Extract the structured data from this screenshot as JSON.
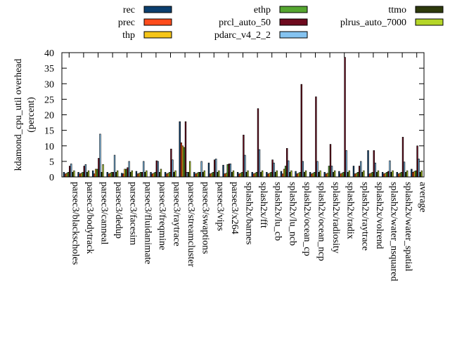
{
  "chart_data": {
    "type": "bar",
    "ylabel": "kdamond_cpu_util overhead (percent)",
    "ylabel_lines": [
      "kdamond_cpu_util overhead",
      "(percent)"
    ],
    "ylim": [
      0,
      40
    ],
    "yticks": [
      0,
      5,
      10,
      15,
      20,
      25,
      30,
      35,
      40
    ],
    "grid": false,
    "legend_position": "top",
    "categories": [
      "parsec3/blackscholes",
      "parsec3/bodytrack",
      "parsec3/canneal",
      "parsec3/dedup",
      "parsec3/facesim",
      "parsec3/fluidanimate",
      "parsec3/freqmine",
      "parsec3/raytrace",
      "parsec3/streamcluster",
      "parsec3/swaptions",
      "parsec3/vips",
      "parsec3/x264",
      "splash2x/barnes",
      "splash2x/fft",
      "splash2x/lu_cb",
      "splash2x/lu_ncb",
      "splash2x/ocean_cp",
      "splash2x/ocean_ncp",
      "splash2x/radiosity",
      "splash2x/radix",
      "splash2x/raytrace",
      "splash2x/volrend",
      "splash2x/water_nsquared",
      "splash2x/water_spatial",
      "average"
    ],
    "series": [
      {
        "name": "rec",
        "color": "#0b3f6f",
        "values": [
          1.5,
          1.5,
          2.0,
          1.5,
          1.2,
          1.8,
          1.5,
          1.5,
          17.8,
          1.5,
          4.5,
          3.8,
          1.5,
          1.5,
          1.5,
          1.8,
          1.8,
          1.5,
          1.5,
          1.8,
          3.5,
          8.5,
          1.5,
          1.5,
          2.5
        ]
      },
      {
        "name": "prec",
        "color": "#ff4c1c",
        "values": [
          1.0,
          1.0,
          1.0,
          1.0,
          1.0,
          1.0,
          1.0,
          1.0,
          11.0,
          1.0,
          1.0,
          1.0,
          1.0,
          1.0,
          1.0,
          1.0,
          1.0,
          1.0,
          1.0,
          1.0,
          1.0,
          1.0,
          1.0,
          1.0,
          1.5
        ]
      },
      {
        "name": "thp",
        "color": "#f5c518",
        "values": [
          1.2,
          1.2,
          2.5,
          1.2,
          2.5,
          1.2,
          1.2,
          1.2,
          10.0,
          1.2,
          1.2,
          1.2,
          1.2,
          1.2,
          1.2,
          2.5,
          1.2,
          1.2,
          1.2,
          1.2,
          1.2,
          1.2,
          1.2,
          1.2,
          1.8
        ]
      },
      {
        "name": "ethp",
        "color": "#55a630",
        "values": [
          1.5,
          1.5,
          2.5,
          1.5,
          2.5,
          1.5,
          1.5,
          1.5,
          9.5,
          1.5,
          1.5,
          4.0,
          1.5,
          1.5,
          1.5,
          3.5,
          1.5,
          1.5,
          3.5,
          1.5,
          1.5,
          1.5,
          1.5,
          1.5,
          2.0
        ]
      },
      {
        "name": "prcl_auto_50",
        "color": "#6e0a1e",
        "values": [
          3.5,
          3.5,
          6.0,
          1.5,
          3.0,
          1.5,
          5.2,
          9.0,
          17.8,
          1.5,
          5.5,
          4.2,
          13.5,
          22.0,
          5.5,
          9.2,
          29.8,
          25.8,
          10.5,
          38.5,
          3.5,
          8.5,
          1.8,
          12.8,
          10.0
        ]
      },
      {
        "name": "pdarc_v4_2_2",
        "color": "#85c3f0",
        "values": [
          4.2,
          4.0,
          13.8,
          7.0,
          5.0,
          5.0,
          5.0,
          5.5,
          1.5,
          5.0,
          5.8,
          4.2,
          7.0,
          8.8,
          4.5,
          5.2,
          5.0,
          5.0,
          3.5,
          8.5,
          5.0,
          4.5,
          5.2,
          4.8,
          5.8
        ]
      },
      {
        "name": "ttmo",
        "color": "#2e3a0c",
        "values": [
          1.5,
          1.5,
          1.5,
          1.5,
          1.5,
          1.5,
          1.5,
          1.5,
          1.5,
          1.5,
          1.5,
          1.5,
          1.5,
          1.5,
          1.5,
          1.5,
          1.5,
          1.5,
          1.5,
          1.5,
          1.5,
          1.5,
          1.5,
          1.5,
          1.5
        ]
      },
      {
        "name": "plrus_auto_7000",
        "color": "#b5d628",
        "values": [
          2.0,
          2.0,
          4.0,
          2.0,
          2.0,
          2.0,
          2.5,
          2.0,
          5.0,
          2.0,
          2.0,
          2.0,
          2.0,
          2.0,
          2.0,
          2.0,
          2.0,
          2.0,
          2.0,
          2.0,
          2.0,
          2.0,
          2.0,
          2.0,
          2.0
        ]
      }
    ]
  }
}
